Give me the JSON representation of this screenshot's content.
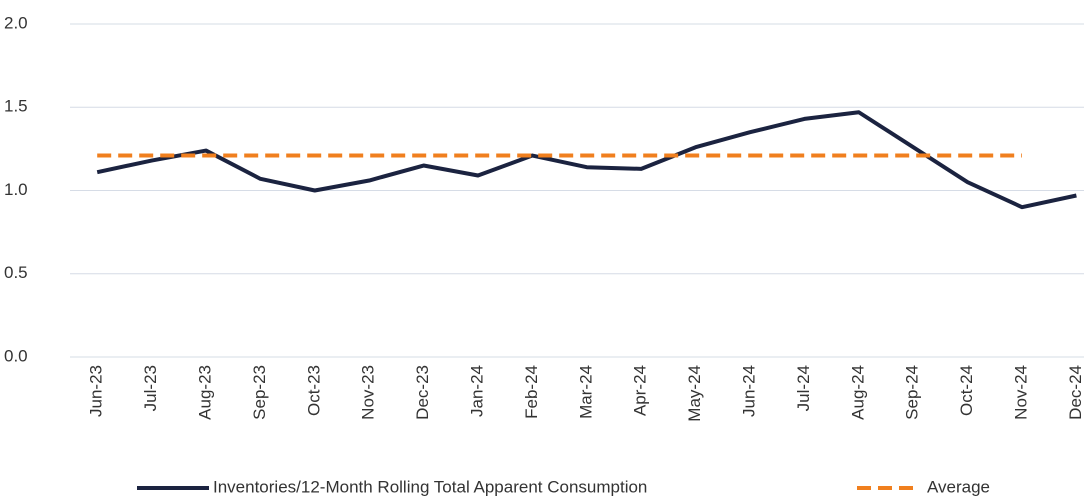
{
  "chart_data": {
    "type": "line",
    "categories": [
      "Jun-23",
      "Jul-23",
      "Aug-23",
      "Sep-23",
      "Oct-23",
      "Nov-23",
      "Dec-23",
      "Jan-24",
      "Feb-24",
      "Mar-24",
      "Apr-24",
      "May-24",
      "Jun-24",
      "Jul-24",
      "Aug-24",
      "Sep-24",
      "Oct-24",
      "Nov-24",
      "Dec-24"
    ],
    "series": [
      {
        "name": "Inventories/12-Month Rolling Total Apparent Consumption",
        "color": "#1b2340",
        "dashed": false,
        "values": [
          1.11,
          1.18,
          1.24,
          1.07,
          1.0,
          1.06,
          1.15,
          1.09,
          1.21,
          1.14,
          1.13,
          1.26,
          1.35,
          1.43,
          1.47,
          1.26,
          1.05,
          0.9,
          0.97
        ]
      },
      {
        "name": "Average",
        "color": "#f07f1e",
        "dashed": true,
        "values": [
          1.21,
          1.21,
          1.21,
          1.21,
          1.21,
          1.21,
          1.21,
          1.21,
          1.21,
          1.21,
          1.21,
          1.21,
          1.21,
          1.21,
          1.21,
          1.21,
          1.21,
          1.21,
          null
        ]
      }
    ],
    "ylim": [
      0,
      2
    ],
    "yticks": [
      {
        "value": 0,
        "label": "0.0"
      },
      0.5,
      {
        "value": 1,
        "label": "1.0"
      },
      1.5,
      {
        "value": 2,
        "label": "2.0"
      }
    ],
    "grid": true,
    "legend": "bottom"
  }
}
